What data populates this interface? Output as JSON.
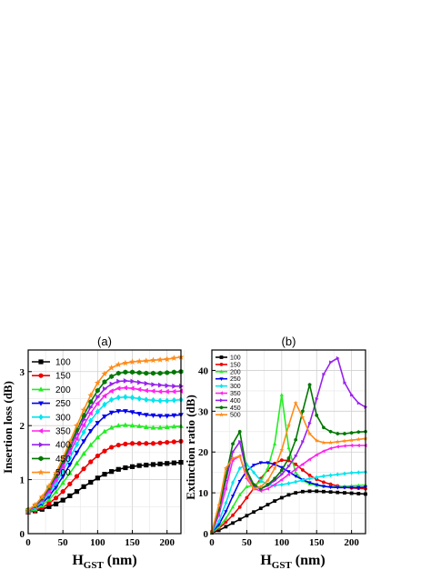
{
  "chart_data": [
    {
      "panel": "(a)",
      "type": "line",
      "xlabel": "H",
      "xlabel_sub": "GST",
      "xlabel_unit": " (nm)",
      "ylabel": "Insertion loss (dB)",
      "xlim": [
        0,
        220
      ],
      "ylim": [
        0,
        3.4
      ],
      "xticks": [
        0,
        50,
        100,
        150,
        200
      ],
      "yticks": [
        0,
        1,
        2,
        3
      ],
      "grid": true,
      "legend": "top-left",
      "x": [
        0,
        10,
        20,
        30,
        40,
        50,
        60,
        70,
        80,
        90,
        100,
        110,
        120,
        130,
        140,
        150,
        160,
        170,
        180,
        190,
        200,
        210,
        220
      ],
      "series": [
        {
          "name": "100",
          "color": "#000000",
          "marker": "square",
          "values": [
            0.4,
            0.42,
            0.45,
            0.5,
            0.55,
            0.62,
            0.7,
            0.78,
            0.87,
            0.95,
            1.03,
            1.1,
            1.15,
            1.19,
            1.22,
            1.24,
            1.26,
            1.27,
            1.28,
            1.29,
            1.3,
            1.31,
            1.32
          ]
        },
        {
          "name": "150",
          "color": "#ee0000",
          "marker": "circle",
          "values": [
            0.4,
            0.43,
            0.48,
            0.56,
            0.66,
            0.78,
            0.92,
            1.06,
            1.2,
            1.33,
            1.44,
            1.53,
            1.6,
            1.64,
            1.66,
            1.67,
            1.67,
            1.67,
            1.67,
            1.68,
            1.69,
            1.7,
            1.71
          ]
        },
        {
          "name": "200",
          "color": "#22ee22",
          "marker": "triangle",
          "values": [
            0.41,
            0.45,
            0.52,
            0.63,
            0.77,
            0.94,
            1.12,
            1.3,
            1.48,
            1.64,
            1.78,
            1.89,
            1.96,
            2.0,
            2.01,
            2.0,
            1.99,
            1.97,
            1.96,
            1.96,
            1.97,
            1.98,
            1.99
          ]
        },
        {
          "name": "250",
          "color": "#0000ee",
          "marker": "tri-down",
          "values": [
            0.42,
            0.47,
            0.56,
            0.69,
            0.86,
            1.06,
            1.28,
            1.5,
            1.71,
            1.9,
            2.05,
            2.17,
            2.24,
            2.27,
            2.27,
            2.25,
            2.22,
            2.2,
            2.19,
            2.18,
            2.18,
            2.19,
            2.2
          ]
        },
        {
          "name": "300",
          "color": "#00e5ee",
          "marker": "diamond",
          "values": [
            0.42,
            0.48,
            0.59,
            0.74,
            0.93,
            1.16,
            1.4,
            1.65,
            1.88,
            2.09,
            2.26,
            2.39,
            2.48,
            2.52,
            2.53,
            2.52,
            2.5,
            2.48,
            2.47,
            2.46,
            2.46,
            2.47,
            2.48
          ]
        },
        {
          "name": "350",
          "color": "#ff22ee",
          "marker": "tri-left",
          "values": [
            0.43,
            0.5,
            0.62,
            0.78,
            0.99,
            1.24,
            1.5,
            1.76,
            2.01,
            2.23,
            2.41,
            2.55,
            2.64,
            2.69,
            2.7,
            2.69,
            2.67,
            2.65,
            2.64,
            2.63,
            2.63,
            2.63,
            2.64
          ]
        },
        {
          "name": "400",
          "color": "#9922ee",
          "marker": "tri-right",
          "values": [
            0.43,
            0.51,
            0.64,
            0.82,
            1.04,
            1.3,
            1.57,
            1.85,
            2.11,
            2.34,
            2.53,
            2.68,
            2.77,
            2.82,
            2.83,
            2.82,
            2.8,
            2.78,
            2.76,
            2.75,
            2.74,
            2.73,
            2.73
          ]
        },
        {
          "name": "450",
          "color": "#007700",
          "marker": "hexagon",
          "values": [
            0.44,
            0.52,
            0.66,
            0.85,
            1.08,
            1.35,
            1.63,
            1.92,
            2.19,
            2.44,
            2.65,
            2.81,
            2.91,
            2.97,
            2.99,
            2.99,
            2.98,
            2.97,
            2.97,
            2.97,
            2.98,
            2.99,
            3.0
          ]
        },
        {
          "name": "500",
          "color": "#ff8c1a",
          "marker": "star",
          "values": [
            0.44,
            0.53,
            0.68,
            0.88,
            1.12,
            1.4,
            1.7,
            2.0,
            2.29,
            2.56,
            2.79,
            2.96,
            3.07,
            3.13,
            3.16,
            3.18,
            3.19,
            3.2,
            3.21,
            3.22,
            3.23,
            3.25,
            3.27
          ]
        }
      ]
    },
    {
      "panel": "(b)",
      "type": "line",
      "xlabel": "H",
      "xlabel_sub": "GST",
      "xlabel_unit": " (nm)",
      "ylabel": "Extinction ratio (dB)",
      "xlim": [
        0,
        220
      ],
      "ylim": [
        0,
        45
      ],
      "xticks": [
        0,
        50,
        100,
        150,
        200
      ],
      "yticks": [
        0,
        10,
        20,
        30,
        40
      ],
      "grid": true,
      "legend": "top-left",
      "x": [
        0,
        10,
        20,
        30,
        40,
        50,
        60,
        70,
        80,
        90,
        100,
        110,
        120,
        130,
        140,
        150,
        160,
        170,
        180,
        190,
        200,
        210,
        220
      ],
      "series": [
        {
          "name": "100",
          "color": "#000000",
          "marker": "square",
          "values": [
            0.2,
            0.8,
            1.7,
            2.6,
            3.5,
            4.4,
            5.3,
            6.2,
            7.1,
            8.0,
            8.8,
            9.5,
            10.0,
            10.3,
            10.4,
            10.4,
            10.3,
            10.2,
            10.1,
            10.0,
            9.9,
            9.8,
            9.7
          ]
        },
        {
          "name": "150",
          "color": "#ee0000",
          "marker": "circle",
          "values": [
            0.3,
            1.3,
            2.8,
            4.5,
            6.5,
            8.8,
            11.1,
            13.5,
            15.6,
            17.2,
            18.0,
            17.9,
            17.0,
            15.6,
            14.3,
            13.3,
            12.6,
            12.1,
            11.7,
            11.4,
            11.2,
            11.1,
            11.0
          ]
        },
        {
          "name": "200",
          "color": "#22ee22",
          "marker": "triangle",
          "values": [
            0.3,
            1.6,
            3.7,
            6.5,
            9.5,
            11.5,
            11.8,
            12.8,
            16.0,
            22.0,
            34.0,
            21.0,
            15.0,
            13.0,
            12.2,
            11.8,
            11.6,
            11.5,
            11.5,
            11.6,
            11.7,
            11.8,
            11.9
          ]
        },
        {
          "name": "250",
          "color": "#0000ee",
          "marker": "tri-down",
          "values": [
            0.4,
            2.2,
            5.4,
            9.2,
            12.8,
            15.4,
            16.8,
            17.4,
            17.4,
            17.0,
            16.2,
            15.2,
            14.1,
            13.2,
            12.5,
            12.0,
            11.6,
            11.4,
            11.3,
            11.3,
            11.3,
            11.3,
            11.4
          ]
        },
        {
          "name": "300",
          "color": "#00e5ee",
          "marker": "diamond",
          "values": [
            0.4,
            3.0,
            7.5,
            12.5,
            16.0,
            17.0,
            15.0,
            13.0,
            12.0,
            11.8,
            12.0,
            12.3,
            12.7,
            13.1,
            13.5,
            13.8,
            14.1,
            14.3,
            14.5,
            14.7,
            14.9,
            15.0,
            15.1
          ]
        },
        {
          "name": "350",
          "color": "#ff22ee",
          "marker": "tri-left",
          "values": [
            0.5,
            4.5,
            11.0,
            18.0,
            19.0,
            13.5,
            11.0,
            10.5,
            11.0,
            12.0,
            13.2,
            14.5,
            15.8,
            17.0,
            18.2,
            19.3,
            20.2,
            20.9,
            21.3,
            21.5,
            21.6,
            21.6,
            21.6
          ]
        },
        {
          "name": "400",
          "color": "#9922ee",
          "marker": "tri-right",
          "values": [
            0.5,
            5.5,
            13.0,
            20.0,
            22.5,
            15.0,
            11.5,
            11.0,
            11.8,
            13.0,
            14.5,
            16.5,
            19.0,
            22.5,
            27.0,
            33.0,
            39.0,
            42.0,
            43.0,
            37.0,
            34.0,
            32.0,
            31.0
          ]
        },
        {
          "name": "450",
          "color": "#007700",
          "marker": "hexagon",
          "values": [
            0.5,
            6.0,
            14.0,
            22.0,
            25.0,
            15.5,
            12.0,
            11.0,
            12.0,
            13.5,
            15.5,
            18.5,
            23.0,
            30.0,
            36.5,
            29.0,
            26.0,
            25.0,
            24.5,
            24.5,
            24.7,
            24.9,
            25.0
          ]
        },
        {
          "name": "500",
          "color": "#ff8c1a",
          "marker": "star",
          "values": [
            0.6,
            7.0,
            16.0,
            18.5,
            19.0,
            14.0,
            11.0,
            11.5,
            13.0,
            16.0,
            20.5,
            26.5,
            32.0,
            28.5,
            24.5,
            22.8,
            22.3,
            22.3,
            22.5,
            22.7,
            22.9,
            23.1,
            23.3
          ]
        }
      ]
    }
  ]
}
